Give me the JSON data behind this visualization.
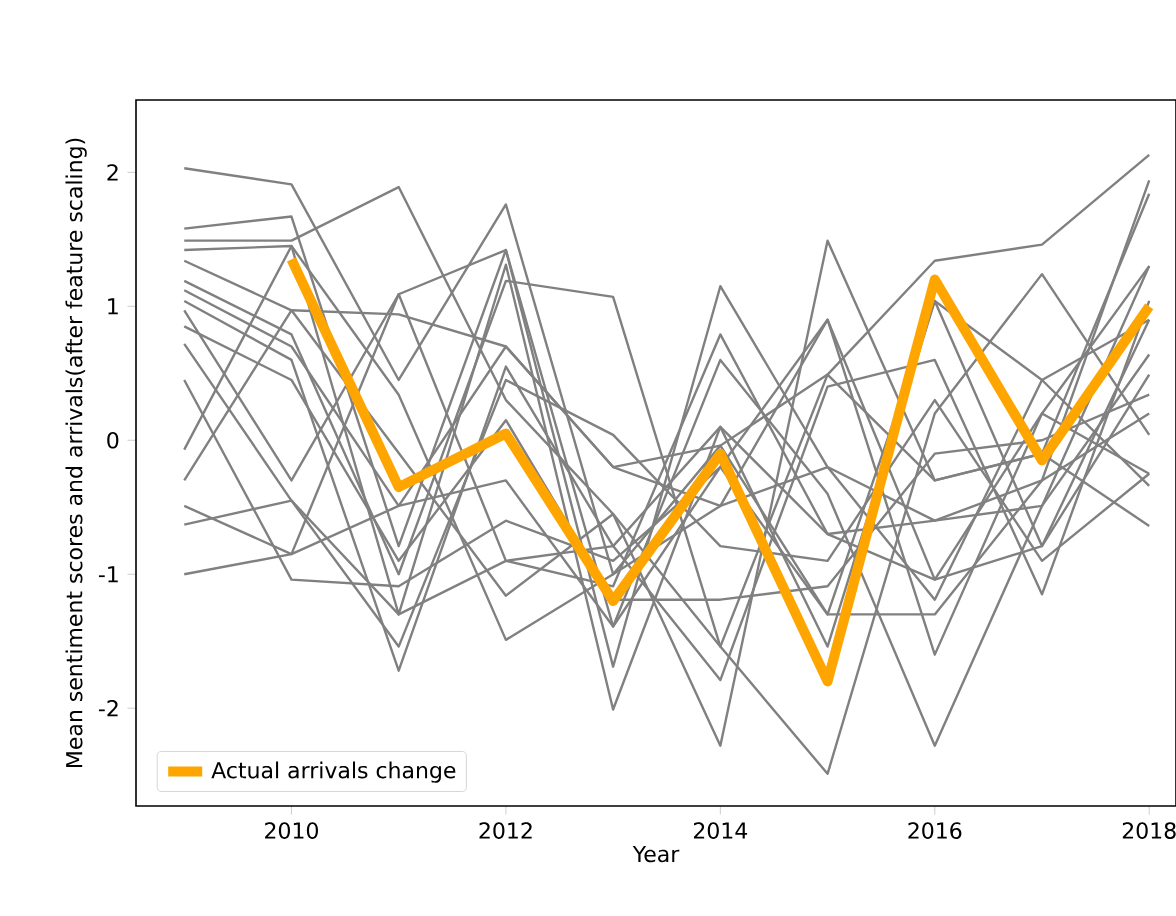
{
  "chart_data": {
    "type": "line",
    "xlabel": "Year",
    "ylabel": "Mean sentiment scores and arrivals(after feature scaling)",
    "x": [
      2009,
      2010,
      2011,
      2012,
      2013,
      2014,
      2015,
      2016,
      2017,
      2018
    ],
    "xlim": [
      2008.55,
      2018.25
    ],
    "ylim": [
      -2.73,
      2.54
    ],
    "xticks": [
      2010,
      2012,
      2014,
      2016,
      2018
    ],
    "yticks": [
      -2,
      -1,
      0,
      1,
      2
    ],
    "legend": "bottom left",
    "grid": false,
    "marker": "none",
    "line_style": "solid",
    "series": [
      {
        "color": "#808080",
        "values": [
          2.03,
          1.91,
          0.45,
          1.76,
          -1.0,
          -0.04,
          0.49,
          1.34,
          1.46,
          2.13
        ]
      },
      {
        "color": "#808080",
        "values": [
          1.58,
          1.67,
          -0.79,
          1.42,
          -1.69,
          1.15,
          -0.2,
          -0.6,
          -0.3,
          1.94
        ]
      },
      {
        "color": "#808080",
        "values": [
          1.49,
          1.49,
          1.89,
          0.3,
          -0.55,
          -2.28,
          1.49,
          -0.3,
          -0.1,
          1.84
        ]
      },
      {
        "color": "#808080",
        "values": [
          1.42,
          1.45,
          -1.3,
          1.31,
          -2.01,
          0.1,
          -1.54,
          1.04,
          0.45,
          0.9
        ]
      },
      {
        "color": "#808080",
        "values": [
          1.34,
          0.97,
          0.94,
          0.7,
          -0.2,
          -0.49,
          0.9,
          -1.6,
          0.2,
          1.3
        ]
      },
      {
        "color": "#808080",
        "values": [
          1.19,
          0.79,
          -1.0,
          1.19,
          1.07,
          -1.54,
          -2.49,
          0.2,
          1.24,
          0.04
        ]
      },
      {
        "color": "#808080",
        "values": [
          1.12,
          0.7,
          -0.49,
          -0.3,
          -1.39,
          0.6,
          -0.4,
          -2.28,
          -0.49,
          0.64
        ]
      },
      {
        "color": "#808080",
        "values": [
          1.04,
          0.6,
          -1.72,
          0.55,
          -0.79,
          -1.79,
          0.4,
          0.6,
          -1.15,
          1.04
        ]
      },
      {
        "color": "#808080",
        "values": [
          0.97,
          -0.3,
          1.09,
          -0.9,
          -1.09,
          0.79,
          -0.7,
          -1.04,
          -0.79,
          0.49
        ]
      },
      {
        "color": "#808080",
        "values": [
          0.85,
          0.45,
          -0.9,
          0.15,
          -1.19,
          -1.19,
          -1.09,
          -0.1,
          0.0,
          0.34
        ]
      },
      {
        "color": "#808080",
        "values": [
          0.72,
          -0.45,
          -1.54,
          0.45,
          0.04,
          -0.79,
          -0.9,
          0.3,
          -0.9,
          -0.25
        ]
      },
      {
        "color": "#808080",
        "values": [
          0.45,
          -1.04,
          -1.09,
          -0.6,
          -0.9,
          -0.2,
          -1.3,
          -1.3,
          -0.3,
          0.2
        ]
      },
      {
        "color": "#808080",
        "values": [
          -0.07,
          1.45,
          0.34,
          -1.49,
          -1.0,
          -0.49,
          -0.2,
          -1.19,
          0.45,
          -0.34
        ]
      },
      {
        "color": "#808080",
        "values": [
          -0.3,
          0.97,
          null,
          -1.16,
          -0.55,
          -1.54,
          0.49,
          -0.3,
          -0.1,
          -0.64
        ]
      },
      {
        "color": "#808080",
        "values": [
          -0.49,
          -0.85,
          -0.49,
          0.7,
          -0.2,
          -0.04,
          -1.3,
          1.04,
          -0.79,
          0.9
        ]
      },
      {
        "color": "#808080",
        "values": [
          -0.63,
          -0.45,
          -1.3,
          -0.9,
          -0.79,
          0.1,
          -0.7,
          -0.6,
          -0.49,
          1.3
        ]
      },
      {
        "color": "#808080",
        "values": [
          -1.0,
          -0.85,
          1.09,
          1.42,
          -1.39,
          -0.2,
          0.9,
          -1.04,
          0.2,
          -0.25
        ]
      },
      {
        "name": "Actual arrivals change",
        "color": "#ffa500",
        "x": [
          2010,
          2011,
          2012,
          2013,
          2014,
          2015,
          2016,
          2017,
          2018
        ],
        "values": [
          1.35,
          -0.35,
          0.05,
          -1.2,
          -0.1,
          -1.8,
          1.2,
          -0.15,
          1.0
        ]
      }
    ]
  }
}
